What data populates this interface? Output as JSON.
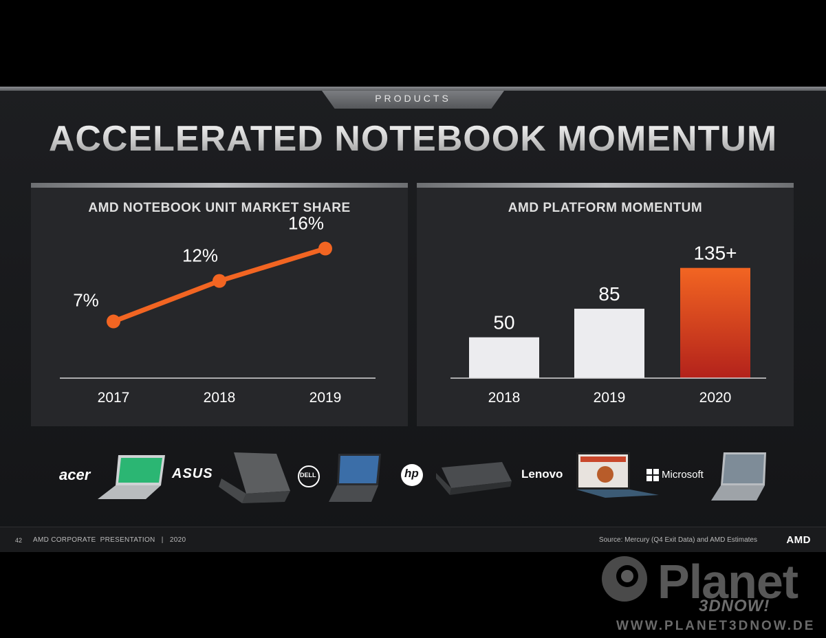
{
  "section_tab": "PRODUCTS",
  "title": "ACCELERATED NOTEBOOK MOMENTUM",
  "chart_data": [
    {
      "type": "line",
      "title": "AMD NOTEBOOK UNIT MARKET SHARE",
      "categories": [
        "2017",
        "2018",
        "2019"
      ],
      "values": [
        7,
        12,
        16
      ],
      "value_labels": [
        "7%",
        "12%",
        "16%"
      ],
      "ylim": [
        0,
        18
      ],
      "grid": false,
      "color": "#f26522"
    },
    {
      "type": "bar",
      "title": "AMD PLATFORM MOMENTUM",
      "categories": [
        "2018",
        "2019",
        "2020"
      ],
      "values": [
        50,
        85,
        135
      ],
      "value_labels": [
        "50",
        "85",
        "135+"
      ],
      "ylim": [
        0,
        160
      ],
      "grid": false,
      "colors": [
        "#ececef",
        "#ececef",
        "#f26522"
      ]
    }
  ],
  "brands": [
    {
      "name": "acer",
      "icon": "acer-logo"
    },
    {
      "name": "ASUS",
      "icon": "asus-logo"
    },
    {
      "name": "DELL",
      "icon": "dell-logo"
    },
    {
      "name": "hp",
      "icon": "hp-logo"
    },
    {
      "name": "Lenovo",
      "icon": "lenovo-logo"
    },
    {
      "name": "Microsoft",
      "icon": "microsoft-logo"
    }
  ],
  "footer": {
    "page": "42",
    "org": "AMD CORPORATE  PRESENTATION   |   2020",
    "source": "Source: Mercury (Q4 Exit Data) and AMD Estimates",
    "logo": "AMD"
  },
  "watermark": {
    "name": "Planet",
    "sub": "3DNOW!",
    "url": "WWW.PLANET3DNOW.DE"
  }
}
